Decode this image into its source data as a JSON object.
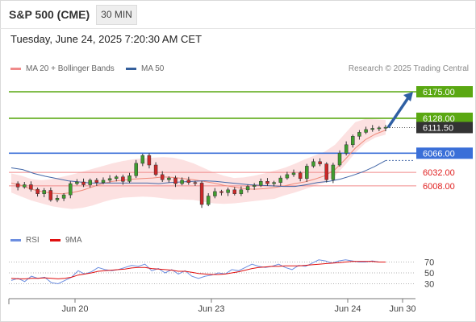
{
  "header": {
    "symbol": "S&P 500 (CME)",
    "timeframe": "30 MIN",
    "datetime": "Tuesday, June 24, 2025 7:20:30 AM CET"
  },
  "legend": {
    "ma20_bb": "MA 20 + Bollinger Bands",
    "ma50": "MA 50",
    "rsi": "RSI",
    "ma9": "9MA"
  },
  "copyright": "Research © 2025 Trading Central",
  "colors": {
    "green_level": "#5aa812",
    "blue_level": "#3a6fd8",
    "red_level": "#f08a8a",
    "red_label": "#e02020",
    "last_price_bg": "#333333",
    "bollinger_fill": "#fbd7d7",
    "ma20": "#f08a7a",
    "ma50": "#4468a8",
    "rsi": "#6c8ee0",
    "rsi_ma": "#e01010",
    "up_candle": "#3f9d2e",
    "down_candle": "#cc2828",
    "arrow": "#2f5fa3"
  },
  "chart_data": [
    {
      "type": "candlestick",
      "y_range": [
        5935,
        6195
      ],
      "x_ticks": [
        "Jun 20",
        "Jun 23",
        "Jun 24",
        "Jun 30"
      ],
      "levels": [
        {
          "value": 6175.0,
          "label": "6175.00",
          "kind": "resistance"
        },
        {
          "value": 6128.0,
          "label": "6128.00",
          "kind": "resistance"
        },
        {
          "value": 6111.5,
          "label": "6111.50",
          "kind": "last"
        },
        {
          "value": 6066.0,
          "label": "6066.00",
          "kind": "pivot"
        },
        {
          "value": 6032.0,
          "label": "6032.00",
          "kind": "support"
        },
        {
          "value": 6008.0,
          "label": "6008.00",
          "kind": "support"
        }
      ],
      "arrow": {
        "from": 6111.5,
        "to": 6175.0,
        "direction": "up"
      },
      "price_path": [
        6012,
        6006,
        6010,
        6002,
        5994,
        6000,
        5983,
        5986,
        5992,
        6012,
        6015,
        6010,
        6018,
        6014,
        6018,
        6021,
        6024,
        6016,
        6026,
        6048,
        6062,
        6045,
        6028,
        6019,
        6022,
        6012,
        6018,
        6014,
        6013,
        5975,
        5990,
        5998,
        5996,
        6001,
        5994,
        6001,
        6007,
        6009,
        6016,
        6012,
        6014,
        6022,
        6028,
        6031,
        6021,
        6043,
        6051,
        6047,
        6019,
        6045,
        6066,
        6081,
        6096,
        6103,
        6108,
        6110,
        6111,
        6112
      ],
      "ma50": [
        6040,
        6037,
        6030,
        6025,
        6021,
        6017,
        6015,
        6013,
        6013,
        6013,
        6013,
        6013,
        6013,
        6012,
        6014,
        6015,
        6016,
        6017,
        6016,
        6014,
        6012,
        6010,
        6009,
        6008,
        6007,
        6007,
        6010,
        6014,
        6016,
        6020,
        6026,
        6033,
        6042,
        6053
      ],
      "ma20": [
        6013,
        6009,
        6002,
        5998,
        5995,
        5994,
        5996,
        6000,
        6006,
        6012,
        6016,
        6018,
        6020,
        6021,
        6022,
        6024,
        6023,
        6021,
        6019,
        6016,
        6013,
        6009,
        6006,
        6003,
        6002,
        6003,
        6005,
        6008,
        6012,
        6015,
        6020,
        6026,
        6037,
        6055,
        6075,
        6090,
        6100,
        6107
      ],
      "bb_upper": [
        6030,
        6026,
        6020,
        6018,
        6020,
        6024,
        6028,
        6033,
        6038,
        6043,
        6048,
        6052,
        6055,
        6057,
        6058,
        6059,
        6058,
        6054,
        6048,
        6040,
        6032,
        6026,
        6022,
        6023,
        6026,
        6030,
        6035,
        6040,
        6047,
        6055,
        6062,
        6069,
        6081,
        6101,
        6121,
        6127,
        6126,
        6125
      ],
      "bb_lower": [
        5996,
        5989,
        5982,
        5977,
        5972,
        5969,
        5967,
        5969,
        5973,
        5979,
        5984,
        5987,
        5988,
        5989,
        5988,
        5986,
        5984,
        5984,
        5983,
        5980,
        5977,
        5976,
        5977,
        5979,
        5981,
        5983,
        5985,
        5991,
        5996,
        6002,
        6008,
        6014,
        6026,
        6045,
        6067,
        6084,
        6094,
        6099
      ]
    },
    {
      "type": "line",
      "y_range": [
        10,
        90
      ],
      "y_ticks": [
        30,
        50,
        70
      ],
      "series": [
        {
          "name": "RSI",
          "values": [
            36,
            40,
            34,
            44,
            40,
            42,
            32,
            30,
            36,
            42,
            54,
            48,
            52,
            60,
            56,
            54,
            56,
            60,
            64,
            62,
            66,
            54,
            58,
            50,
            56,
            48,
            54,
            44,
            40,
            44,
            46,
            50,
            48,
            56,
            54,
            60,
            66,
            62,
            60,
            62,
            66,
            60,
            56,
            64,
            62,
            68,
            74,
            72,
            68,
            72,
            74,
            72,
            70,
            70,
            72,
            70,
            70
          ]
        },
        {
          "name": "9MA",
          "values": [
            40,
            39,
            39,
            40,
            40,
            41,
            40,
            39,
            40,
            42,
            46,
            48,
            50,
            53,
            54,
            55,
            56,
            57,
            59,
            60,
            60,
            58,
            57,
            56,
            55,
            53,
            53,
            51,
            49,
            48,
            47,
            47,
            48,
            50,
            52,
            55,
            58,
            60,
            61,
            62,
            62,
            63,
            63,
            63,
            64,
            65,
            66,
            67,
            68,
            69,
            70,
            71,
            71,
            71,
            71,
            70,
            70
          ]
        }
      ]
    }
  ]
}
